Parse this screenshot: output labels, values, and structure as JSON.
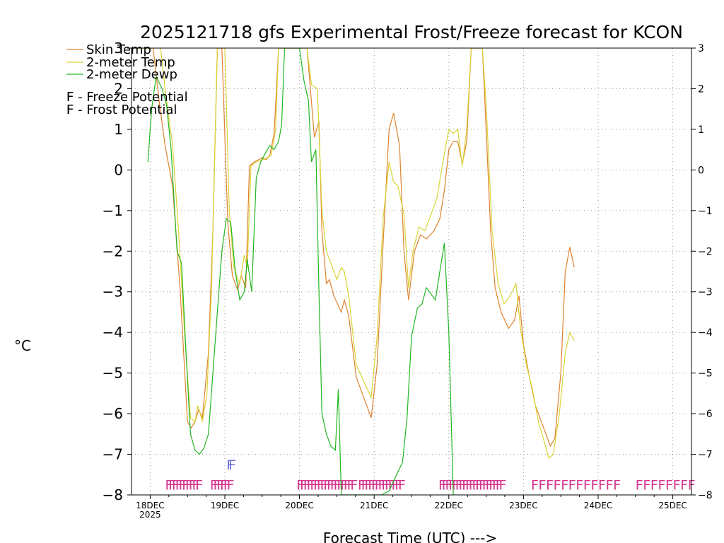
{
  "chart_data": {
    "type": "line",
    "title": "2025121718 gfs Experimental Frost/Freeze forecast for KCON",
    "ylabel": "°C",
    "xlabel": "Forecast Time (UTC) --->",
    "ylim": [
      -8,
      3
    ],
    "xlim": [
      -0.25,
      7.25
    ],
    "yticks": [
      -8,
      -7,
      -6,
      -5,
      -4,
      -3,
      -2,
      -1,
      0,
      1,
      2,
      3
    ],
    "yticklabels": [
      "−8",
      "−7",
      "−6",
      "−5",
      "−4",
      "−3",
      "−2",
      "−1",
      "0",
      "1",
      "2",
      "3"
    ],
    "xticks": [
      {
        "x": 0,
        "label": "18DEC",
        "sublabel": "2025"
      },
      {
        "x": 1,
        "label": "19DEC"
      },
      {
        "x": 2,
        "label": "20DEC"
      },
      {
        "x": 3,
        "label": "21DEC"
      },
      {
        "x": 4,
        "label": "22DEC"
      },
      {
        "x": 5,
        "label": "23DEC"
      },
      {
        "x": 6,
        "label": "24DEC"
      },
      {
        "x": 7,
        "label": "25DEC"
      }
    ],
    "x_units": "days since 18DEC 00Z",
    "grid": true,
    "legend_position": "top-left",
    "series": [
      {
        "name": "Skin Temp",
        "color": "#e0822e",
        "points": [
          [
            -0.25,
            3.0
          ],
          [
            0.04,
            3.0
          ],
          [
            0.12,
            1.7
          ],
          [
            0.2,
            0.6
          ],
          [
            0.3,
            -0.4
          ],
          [
            0.4,
            -2.9
          ],
          [
            0.5,
            -6.2
          ],
          [
            0.55,
            -6.35
          ],
          [
            0.6,
            -6.2
          ],
          [
            0.65,
            -5.9
          ],
          [
            0.7,
            -6.1
          ],
          [
            0.78,
            -4.5
          ],
          [
            0.84,
            -1.5
          ],
          [
            0.9,
            3.0
          ],
          [
            0.96,
            3.0
          ],
          [
            1.04,
            -1.3
          ],
          [
            1.1,
            -2.6
          ],
          [
            1.17,
            -2.95
          ],
          [
            1.22,
            -2.6
          ],
          [
            1.28,
            -2.9
          ],
          [
            1.33,
            0.1
          ],
          [
            1.4,
            0.2
          ],
          [
            1.5,
            0.3
          ],
          [
            1.55,
            0.25
          ],
          [
            1.6,
            0.35
          ],
          [
            1.66,
            0.9
          ],
          [
            1.72,
            3.0
          ],
          [
            2.1,
            3.0
          ],
          [
            2.2,
            0.8
          ],
          [
            2.26,
            1.2
          ],
          [
            2.3,
            -1.5
          ],
          [
            2.36,
            -2.8
          ],
          [
            2.4,
            -2.7
          ],
          [
            2.46,
            -3.1
          ],
          [
            2.56,
            -3.5
          ],
          [
            2.6,
            -3.2
          ],
          [
            2.66,
            -3.6
          ],
          [
            2.76,
            -5.1
          ],
          [
            2.86,
            -5.6
          ],
          [
            2.96,
            -6.1
          ],
          [
            3.04,
            -4.8
          ],
          [
            3.12,
            -1.8
          ],
          [
            3.2,
            1.0
          ],
          [
            3.26,
            1.4
          ],
          [
            3.34,
            0.6
          ],
          [
            3.4,
            -2.0
          ],
          [
            3.46,
            -3.2
          ],
          [
            3.54,
            -2.0
          ],
          [
            3.62,
            -1.6
          ],
          [
            3.7,
            -1.7
          ],
          [
            3.8,
            -1.5
          ],
          [
            3.88,
            -1.2
          ],
          [
            3.94,
            -0.5
          ],
          [
            4.0,
            0.5
          ],
          [
            4.06,
            0.7
          ],
          [
            4.12,
            0.7
          ],
          [
            4.18,
            0.15
          ],
          [
            4.24,
            0.7
          ],
          [
            4.3,
            3.0
          ],
          [
            4.45,
            3.0
          ],
          [
            4.5,
            1.0
          ],
          [
            4.56,
            -1.5
          ],
          [
            4.62,
            -2.9
          ],
          [
            4.7,
            -3.5
          ],
          [
            4.8,
            -3.9
          ],
          [
            4.88,
            -3.7
          ],
          [
            4.94,
            -3.1
          ],
          [
            5.0,
            -4.3
          ],
          [
            5.08,
            -5.1
          ],
          [
            5.16,
            -5.8
          ],
          [
            5.24,
            -6.2
          ],
          [
            5.3,
            -6.5
          ],
          [
            5.36,
            -6.8
          ],
          [
            5.42,
            -6.6
          ],
          [
            5.5,
            -5.0
          ],
          [
            5.56,
            -2.5
          ],
          [
            5.62,
            -1.9
          ],
          [
            5.68,
            -2.4
          ]
        ]
      },
      {
        "name": "2-meter Temp",
        "color": "#d8d436",
        "points": [
          [
            -0.25,
            3.0
          ],
          [
            0.14,
            3.0
          ],
          [
            0.2,
            2.0
          ],
          [
            0.3,
            0.6
          ],
          [
            0.38,
            -1.5
          ],
          [
            0.46,
            -4.0
          ],
          [
            0.54,
            -6.1
          ],
          [
            0.6,
            -6.2
          ],
          [
            0.64,
            -5.8
          ],
          [
            0.7,
            -6.2
          ],
          [
            0.76,
            -5.5
          ],
          [
            0.82,
            -3.0
          ],
          [
            0.9,
            3.0
          ],
          [
            1.0,
            3.0
          ],
          [
            1.06,
            -1.0
          ],
          [
            1.12,
            -2.4
          ],
          [
            1.2,
            -2.8
          ],
          [
            1.26,
            -2.1
          ],
          [
            1.3,
            -2.4
          ],
          [
            1.35,
            0.1
          ],
          [
            1.42,
            0.2
          ],
          [
            1.5,
            0.25
          ],
          [
            1.56,
            0.3
          ],
          [
            1.62,
            0.35
          ],
          [
            1.68,
            1.0
          ],
          [
            1.72,
            3.0
          ],
          [
            2.1,
            3.0
          ],
          [
            2.16,
            2.1
          ],
          [
            2.24,
            2.0
          ],
          [
            2.3,
            -1.0
          ],
          [
            2.36,
            -2.0
          ],
          [
            2.42,
            -2.3
          ],
          [
            2.5,
            -2.7
          ],
          [
            2.56,
            -2.4
          ],
          [
            2.6,
            -2.5
          ],
          [
            2.66,
            -3.1
          ],
          [
            2.76,
            -4.8
          ],
          [
            2.86,
            -5.2
          ],
          [
            2.96,
            -5.6
          ],
          [
            3.04,
            -4.1
          ],
          [
            3.12,
            -1.2
          ],
          [
            3.2,
            0.2
          ],
          [
            3.26,
            -0.3
          ],
          [
            3.32,
            -0.4
          ],
          [
            3.4,
            -1.1
          ],
          [
            3.46,
            -2.9
          ],
          [
            3.52,
            -2.0
          ],
          [
            3.6,
            -1.4
          ],
          [
            3.68,
            -1.5
          ],
          [
            3.76,
            -1.1
          ],
          [
            3.84,
            -0.7
          ],
          [
            3.92,
            0.2
          ],
          [
            4.0,
            1.0
          ],
          [
            4.06,
            0.9
          ],
          [
            4.12,
            1.0
          ],
          [
            4.18,
            0.1
          ],
          [
            4.24,
            1.0
          ],
          [
            4.3,
            3.0
          ],
          [
            4.45,
            3.0
          ],
          [
            4.5,
            1.6
          ],
          [
            4.58,
            -1.5
          ],
          [
            4.66,
            -2.8
          ],
          [
            4.74,
            -3.3
          ],
          [
            4.82,
            -3.1
          ],
          [
            4.9,
            -2.8
          ],
          [
            4.96,
            -3.9
          ],
          [
            5.04,
            -4.8
          ],
          [
            5.12,
            -5.4
          ],
          [
            5.2,
            -6.2
          ],
          [
            5.28,
            -6.7
          ],
          [
            5.34,
            -7.1
          ],
          [
            5.4,
            -7.0
          ],
          [
            5.48,
            -6.0
          ],
          [
            5.56,
            -4.5
          ],
          [
            5.62,
            -4.0
          ],
          [
            5.68,
            -4.2
          ]
        ]
      },
      {
        "name": "2-meter Dewp",
        "color": "#22b622",
        "points": [
          [
            -0.03,
            0.2
          ],
          [
            0.02,
            1.5
          ],
          [
            0.08,
            2.3
          ],
          [
            0.16,
            2.0
          ],
          [
            0.22,
            1.6
          ],
          [
            0.28,
            0.5
          ],
          [
            0.36,
            -2.0
          ],
          [
            0.42,
            -2.3
          ],
          [
            0.48,
            -4.5
          ],
          [
            0.54,
            -6.5
          ],
          [
            0.6,
            -6.9
          ],
          [
            0.66,
            -7.0
          ],
          [
            0.72,
            -6.85
          ],
          [
            0.78,
            -6.5
          ],
          [
            0.84,
            -5.0
          ],
          [
            0.9,
            -3.5
          ],
          [
            0.96,
            -2.0
          ],
          [
            1.02,
            -1.2
          ],
          [
            1.08,
            -1.3
          ],
          [
            1.14,
            -2.5
          ],
          [
            1.2,
            -3.2
          ],
          [
            1.26,
            -3.0
          ],
          [
            1.3,
            -2.2
          ],
          [
            1.36,
            -3.0
          ],
          [
            1.42,
            -0.2
          ],
          [
            1.48,
            0.2
          ],
          [
            1.54,
            0.4
          ],
          [
            1.6,
            0.6
          ],
          [
            1.66,
            0.5
          ],
          [
            1.72,
            0.7
          ],
          [
            1.76,
            1.1
          ],
          [
            1.8,
            3.0
          ],
          [
            2.0,
            3.0
          ],
          [
            2.06,
            2.2
          ],
          [
            2.12,
            1.7
          ],
          [
            2.16,
            0.2
          ],
          [
            2.22,
            0.5
          ],
          [
            2.26,
            -3.0
          ],
          [
            2.3,
            -6.0
          ],
          [
            2.36,
            -6.5
          ],
          [
            2.42,
            -6.8
          ],
          [
            2.48,
            -6.9
          ],
          [
            2.52,
            -5.4
          ],
          [
            2.56,
            -8.0
          ],
          [
            3.1,
            -8.0
          ],
          [
            3.2,
            -7.9
          ],
          [
            3.3,
            -7.5
          ],
          [
            3.38,
            -7.2
          ],
          [
            3.44,
            -6.1
          ],
          [
            3.5,
            -4.1
          ],
          [
            3.58,
            -3.4
          ],
          [
            3.64,
            -3.3
          ],
          [
            3.7,
            -2.9
          ],
          [
            3.76,
            -3.05
          ],
          [
            3.82,
            -3.2
          ],
          [
            3.88,
            -2.5
          ],
          [
            3.94,
            -1.8
          ],
          [
            4.0,
            -4.0
          ],
          [
            4.06,
            -8.0
          ]
        ]
      }
    ],
    "flag_rows": [
      {
        "name": "Frost Potential",
        "color": "#6f71d9",
        "marks": [
          1.02
        ]
      },
      {
        "name": "Freeze Potential",
        "color": "#d4378f",
        "marks": [
          0.5,
          1.0,
          1.96,
          2.65,
          3.5,
          4.4,
          5.6,
          6.25,
          7.25
        ],
        "extended_marks": [
          5.1,
          5.2,
          5.3,
          5.4,
          5.5,
          5.6,
          5.7,
          5.8,
          5.9,
          6.0,
          6.1,
          6.2,
          6.5,
          6.6,
          6.7,
          6.8,
          6.9,
          7.0,
          7.1,
          7.2
        ]
      }
    ],
    "legend": [
      {
        "label": "Skin Temp",
        "color": "#e0822e",
        "kind": "line"
      },
      {
        "label": "2-meter Temp",
        "color": "#d8d436",
        "kind": "line"
      },
      {
        "label": "2-meter Dewp",
        "color": "#22b622",
        "kind": "line"
      },
      {
        "label": "F - Freeze Potential",
        "color": "#d4378f",
        "kind": "flag"
      },
      {
        "label": "F - Frost Potential",
        "color": "#6f71d9",
        "kind": "flag"
      }
    ]
  }
}
